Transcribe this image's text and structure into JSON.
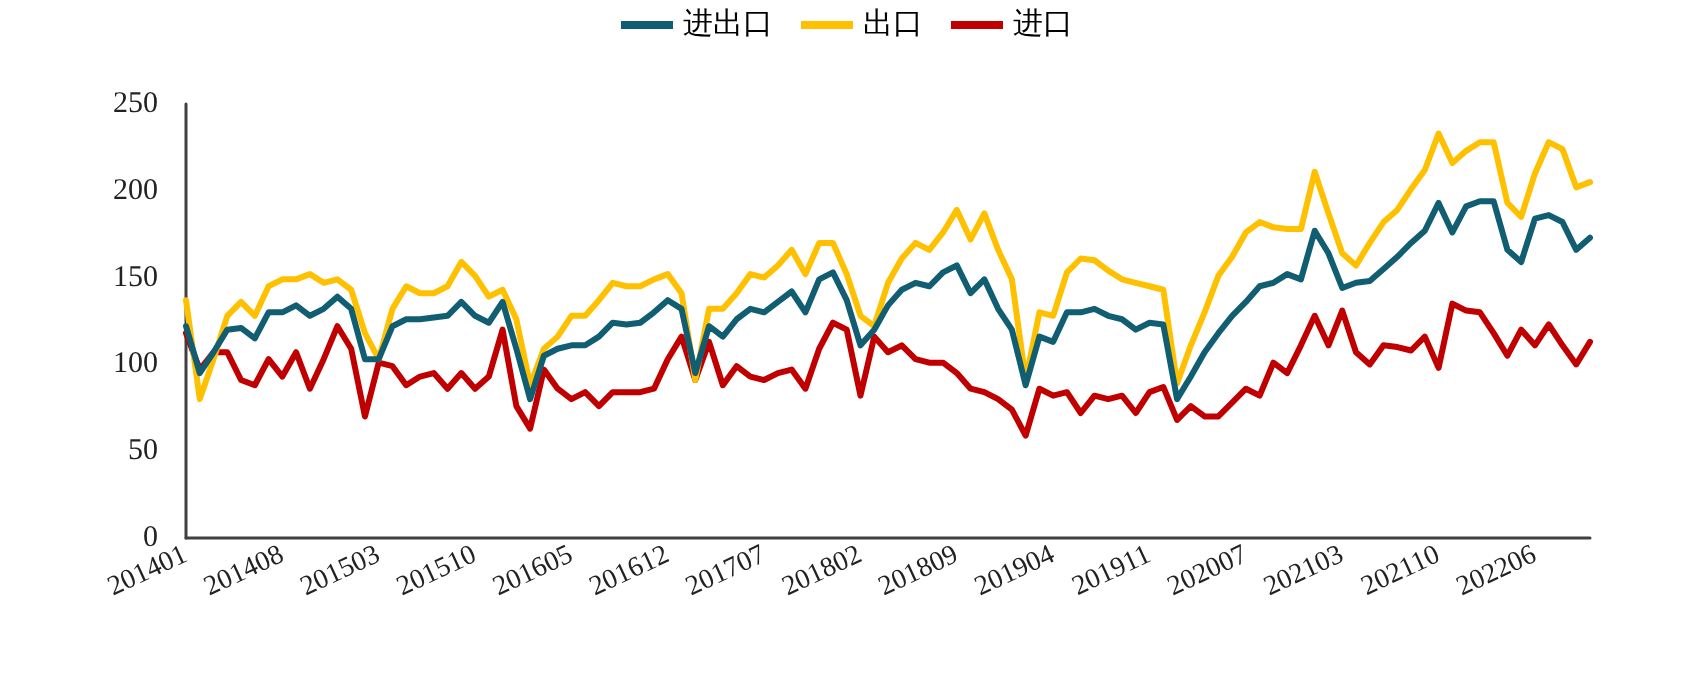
{
  "chart_data": {
    "type": "line",
    "categories": [
      "201401",
      null,
      null,
      null,
      null,
      null,
      null,
      "201408",
      null,
      null,
      null,
      null,
      null,
      null,
      "201503",
      null,
      null,
      null,
      null,
      null,
      null,
      "201510",
      null,
      null,
      null,
      null,
      null,
      null,
      "201605",
      null,
      null,
      null,
      null,
      null,
      null,
      "201612",
      null,
      null,
      null,
      null,
      null,
      null,
      "201707",
      null,
      null,
      null,
      null,
      null,
      null,
      "201802",
      null,
      null,
      null,
      null,
      null,
      null,
      "201809",
      null,
      null,
      null,
      null,
      null,
      null,
      "201904",
      null,
      null,
      null,
      null,
      null,
      null,
      "201911",
      null,
      null,
      null,
      null,
      null,
      null,
      "202007",
      null,
      null,
      null,
      null,
      null,
      null,
      "202103",
      null,
      null,
      null,
      null,
      null,
      null,
      "202110",
      null,
      null,
      null,
      null,
      null,
      null,
      "202206",
      null,
      null,
      null,
      null
    ],
    "series": [
      {
        "name": "进出口",
        "color": "#115e72",
        "values": [
          122,
          95,
          107,
          120,
          121,
          115,
          130,
          130,
          134,
          128,
          132,
          139,
          132,
          103,
          103,
          122,
          126,
          126,
          127,
          128,
          136,
          128,
          124,
          136,
          109,
          80,
          105,
          109,
          111,
          111,
          116,
          124,
          123,
          124,
          130,
          137,
          132,
          95,
          122,
          116,
          126,
          132,
          130,
          136,
          142,
          130,
          149,
          153,
          137,
          111,
          120,
          134,
          143,
          147,
          145,
          153,
          157,
          141,
          149,
          132,
          120,
          88,
          116,
          113,
          130,
          130,
          132,
          128,
          126,
          120,
          124,
          123,
          80,
          93,
          107,
          118,
          128,
          136,
          145,
          147,
          152,
          149,
          177,
          164,
          144,
          147,
          148,
          155,
          162,
          170,
          177,
          193,
          176,
          191,
          194,
          194,
          166,
          159,
          184,
          186,
          182,
          166,
          173
        ]
      },
      {
        "name": "出口",
        "color": "#ffc000",
        "values": [
          137,
          80,
          103,
          128,
          136,
          128,
          145,
          149,
          149,
          152,
          147,
          149,
          143,
          118,
          103,
          132,
          145,
          141,
          141,
          145,
          159,
          151,
          139,
          143,
          126,
          88,
          109,
          116,
          128,
          128,
          137,
          147,
          145,
          145,
          149,
          152,
          141,
          91,
          132,
          132,
          141,
          152,
          150,
          157,
          166,
          152,
          170,
          170,
          152,
          128,
          122,
          147,
          161,
          170,
          166,
          176,
          189,
          172,
          187,
          166,
          149,
          91,
          130,
          128,
          153,
          161,
          160,
          154,
          149,
          147,
          145,
          143,
          89,
          111,
          130,
          151,
          162,
          176,
          182,
          179,
          178,
          178,
          211,
          187,
          164,
          157,
          170,
          182,
          189,
          201,
          212,
          233,
          216,
          223,
          228,
          228,
          193,
          185,
          210,
          228,
          224,
          202,
          205
        ]
      },
      {
        "name": "进口",
        "color": "#c00000",
        "values": [
          118,
          97,
          107,
          107,
          91,
          88,
          103,
          93,
          107,
          86,
          103,
          122,
          109,
          70,
          101,
          99,
          88,
          93,
          95,
          86,
          95,
          86,
          93,
          120,
          76,
          63,
          97,
          86,
          80,
          84,
          76,
          84,
          84,
          84,
          86,
          103,
          116,
          91,
          113,
          88,
          99,
          93,
          91,
          95,
          97,
          86,
          109,
          124,
          120,
          82,
          116,
          107,
          111,
          103,
          101,
          101,
          95,
          86,
          84,
          80,
          74,
          59,
          86,
          82,
          84,
          72,
          82,
          80,
          82,
          72,
          84,
          87,
          68,
          76,
          70,
          70,
          78,
          86,
          82,
          101,
          95,
          111,
          128,
          111,
          131,
          107,
          100,
          111,
          110,
          108,
          116,
          98,
          135,
          131,
          130,
          118,
          105,
          120,
          111,
          123,
          111,
          100,
          113
        ]
      }
    ],
    "ylim": [
      0,
      250
    ],
    "yticks": [
      0,
      50,
      100,
      150,
      200,
      250
    ],
    "legend": "top",
    "grid": false,
    "marker": "none",
    "line_style": "solid"
  }
}
